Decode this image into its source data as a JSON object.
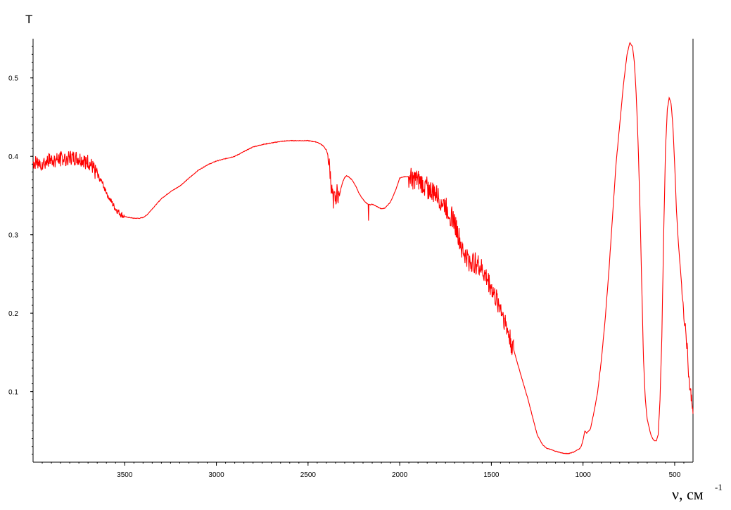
{
  "chart_data": {
    "type": "line",
    "title": "",
    "ylabel": "T",
    "xlabel": "ν, см",
    "xlabel_superscript": "-1",
    "xlim": [
      4000,
      400
    ],
    "ylim": [
      0.01,
      0.55
    ],
    "x_reversed": true,
    "grid": false,
    "x_ticks": [
      3500,
      3000,
      2500,
      2000,
      1500,
      1000,
      500
    ],
    "y_ticks": [
      0.1,
      0.2,
      0.3,
      0.4,
      0.5
    ],
    "line_color": "#ff0000",
    "series": [
      {
        "x": [
          4000,
          3950,
          3900,
          3850,
          3800,
          3750,
          3700,
          3680,
          3650,
          3620,
          3600,
          3580,
          3550,
          3520,
          3500,
          3450,
          3420,
          3400,
          3380,
          3350,
          3300,
          3250,
          3200,
          3150,
          3100,
          3050,
          3000,
          2950,
          2900,
          2850,
          2800,
          2750,
          2700,
          2650,
          2600,
          2550,
          2500,
          2450,
          2420,
          2400,
          2390,
          2380,
          2370,
          2360,
          2350,
          2340,
          2330,
          2320,
          2310,
          2300,
          2290,
          2280,
          2260,
          2240,
          2220,
          2200,
          2180,
          2170,
          2160,
          2150,
          2100,
          2080,
          2050,
          2020,
          2000,
          1980,
          1950,
          1920,
          1900,
          1850,
          1800,
          1750,
          1700,
          1680,
          1650,
          1620,
          1600,
          1580,
          1560,
          1540,
          1520,
          1500,
          1480,
          1450,
          1420,
          1400,
          1380,
          1350,
          1300,
          1250,
          1220,
          1200,
          1150,
          1120,
          1100,
          1080,
          1050,
          1020,
          1010,
          1000,
          990,
          980,
          960,
          940,
          920,
          900,
          880,
          860,
          840,
          820,
          800,
          780,
          760,
          745,
          730,
          720,
          710,
          700,
          690,
          680,
          670,
          660,
          650,
          640,
          630,
          620,
          610,
          600,
          590,
          580,
          570,
          560,
          550,
          540,
          530,
          520,
          510,
          500,
          490,
          480,
          470,
          460,
          450,
          440,
          430,
          420,
          410,
          400
        ],
        "y": [
          0.392,
          0.394,
          0.396,
          0.398,
          0.399,
          0.398,
          0.394,
          0.388,
          0.378,
          0.365,
          0.355,
          0.345,
          0.333,
          0.326,
          0.323,
          0.321,
          0.321,
          0.322,
          0.325,
          0.333,
          0.346,
          0.355,
          0.362,
          0.372,
          0.382,
          0.389,
          0.394,
          0.397,
          0.4,
          0.406,
          0.412,
          0.415,
          0.417,
          0.419,
          0.42,
          0.42,
          0.42,
          0.418,
          0.414,
          0.408,
          0.4,
          0.38,
          0.355,
          0.345,
          0.35,
          0.355,
          0.348,
          0.36,
          0.368,
          0.373,
          0.375,
          0.374,
          0.37,
          0.362,
          0.352,
          0.345,
          0.34,
          0.339,
          0.338,
          0.339,
          0.333,
          0.334,
          0.342,
          0.358,
          0.372,
          0.374,
          0.374,
          0.372,
          0.37,
          0.362,
          0.352,
          0.338,
          0.318,
          0.3,
          0.278,
          0.268,
          0.266,
          0.265,
          0.26,
          0.252,
          0.244,
          0.235,
          0.222,
          0.21,
          0.187,
          0.17,
          0.155,
          0.13,
          0.09,
          0.045,
          0.032,
          0.028,
          0.024,
          0.022,
          0.021,
          0.021,
          0.023,
          0.027,
          0.03,
          0.038,
          0.05,
          0.047,
          0.052,
          0.074,
          0.1,
          0.14,
          0.19,
          0.25,
          0.32,
          0.39,
          0.44,
          0.49,
          0.53,
          0.545,
          0.54,
          0.52,
          0.48,
          0.42,
          0.34,
          0.24,
          0.14,
          0.09,
          0.065,
          0.055,
          0.045,
          0.04,
          0.037,
          0.037,
          0.045,
          0.09,
          0.17,
          0.3,
          0.41,
          0.46,
          0.475,
          0.468,
          0.44,
          0.39,
          0.33,
          0.29,
          0.26,
          0.23,
          0.2,
          0.18,
          0.15,
          0.11,
          0.095,
          0.08
        ]
      }
    ]
  }
}
